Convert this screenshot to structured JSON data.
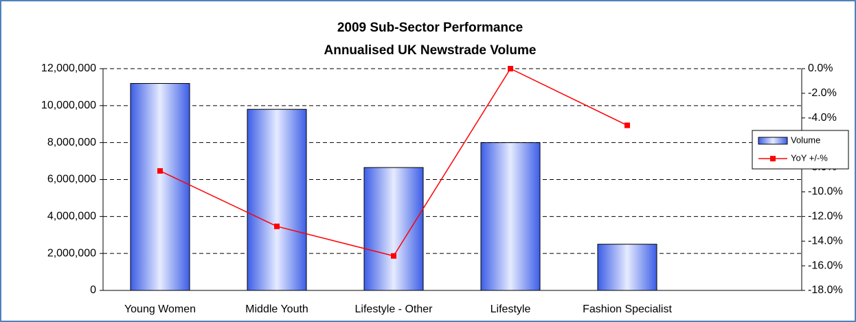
{
  "chart_data": {
    "type": "bar",
    "title": "2009 Sub-Sector Performance",
    "subtitle": "Annualised UK Newstrade Volume",
    "categories": [
      "Young Women",
      "Middle Youth",
      "Lifestyle - Other",
      "Lifestyle",
      "Fashion Specialist"
    ],
    "series": [
      {
        "name": "Volume",
        "color": "#3c5ee6",
        "values": [
          11200000,
          9800000,
          6650000,
          8000000,
          2500000
        ]
      },
      {
        "name": "YoY +/-%",
        "color": "#ff0000",
        "axis": "y2",
        "type": "line",
        "values": [
          -8.3,
          -12.8,
          -15.2,
          0.0,
          -4.6
        ]
      }
    ],
    "ylim": [
      0,
      12000000
    ],
    "yticks": [
      0,
      {
        "value": 2000000,
        "label": "2,000,000"
      },
      {
        "value": 4000000,
        "label": "4,000,000"
      },
      {
        "value": 6000000,
        "label": "6,000,000"
      },
      {
        "value": 8000000,
        "label": "8,000,000"
      },
      {
        "value": 10000000,
        "label": "10,000,000"
      },
      {
        "value": 12000000,
        "label": "12,000,000"
      }
    ],
    "y2lim": [
      -18,
      0
    ],
    "y2ticks": [
      {
        "value": 0,
        "label": "0.0%"
      },
      {
        "value": -2,
        "label": "-2.0%"
      },
      {
        "value": -4,
        "label": "-4.0%"
      },
      {
        "value": -6,
        "label": "-6.0%"
      },
      {
        "value": -8,
        "label": "-8.0%"
      },
      {
        "value": -10,
        "label": "-10.0%"
      },
      {
        "value": -12,
        "label": "-12.0%"
      },
      {
        "value": -14,
        "label": "-14.0%"
      },
      {
        "value": -16,
        "label": "-16.0%"
      },
      {
        "value": -18,
        "label": "-18.0%"
      }
    ],
    "grid": true,
    "legend": "right"
  }
}
